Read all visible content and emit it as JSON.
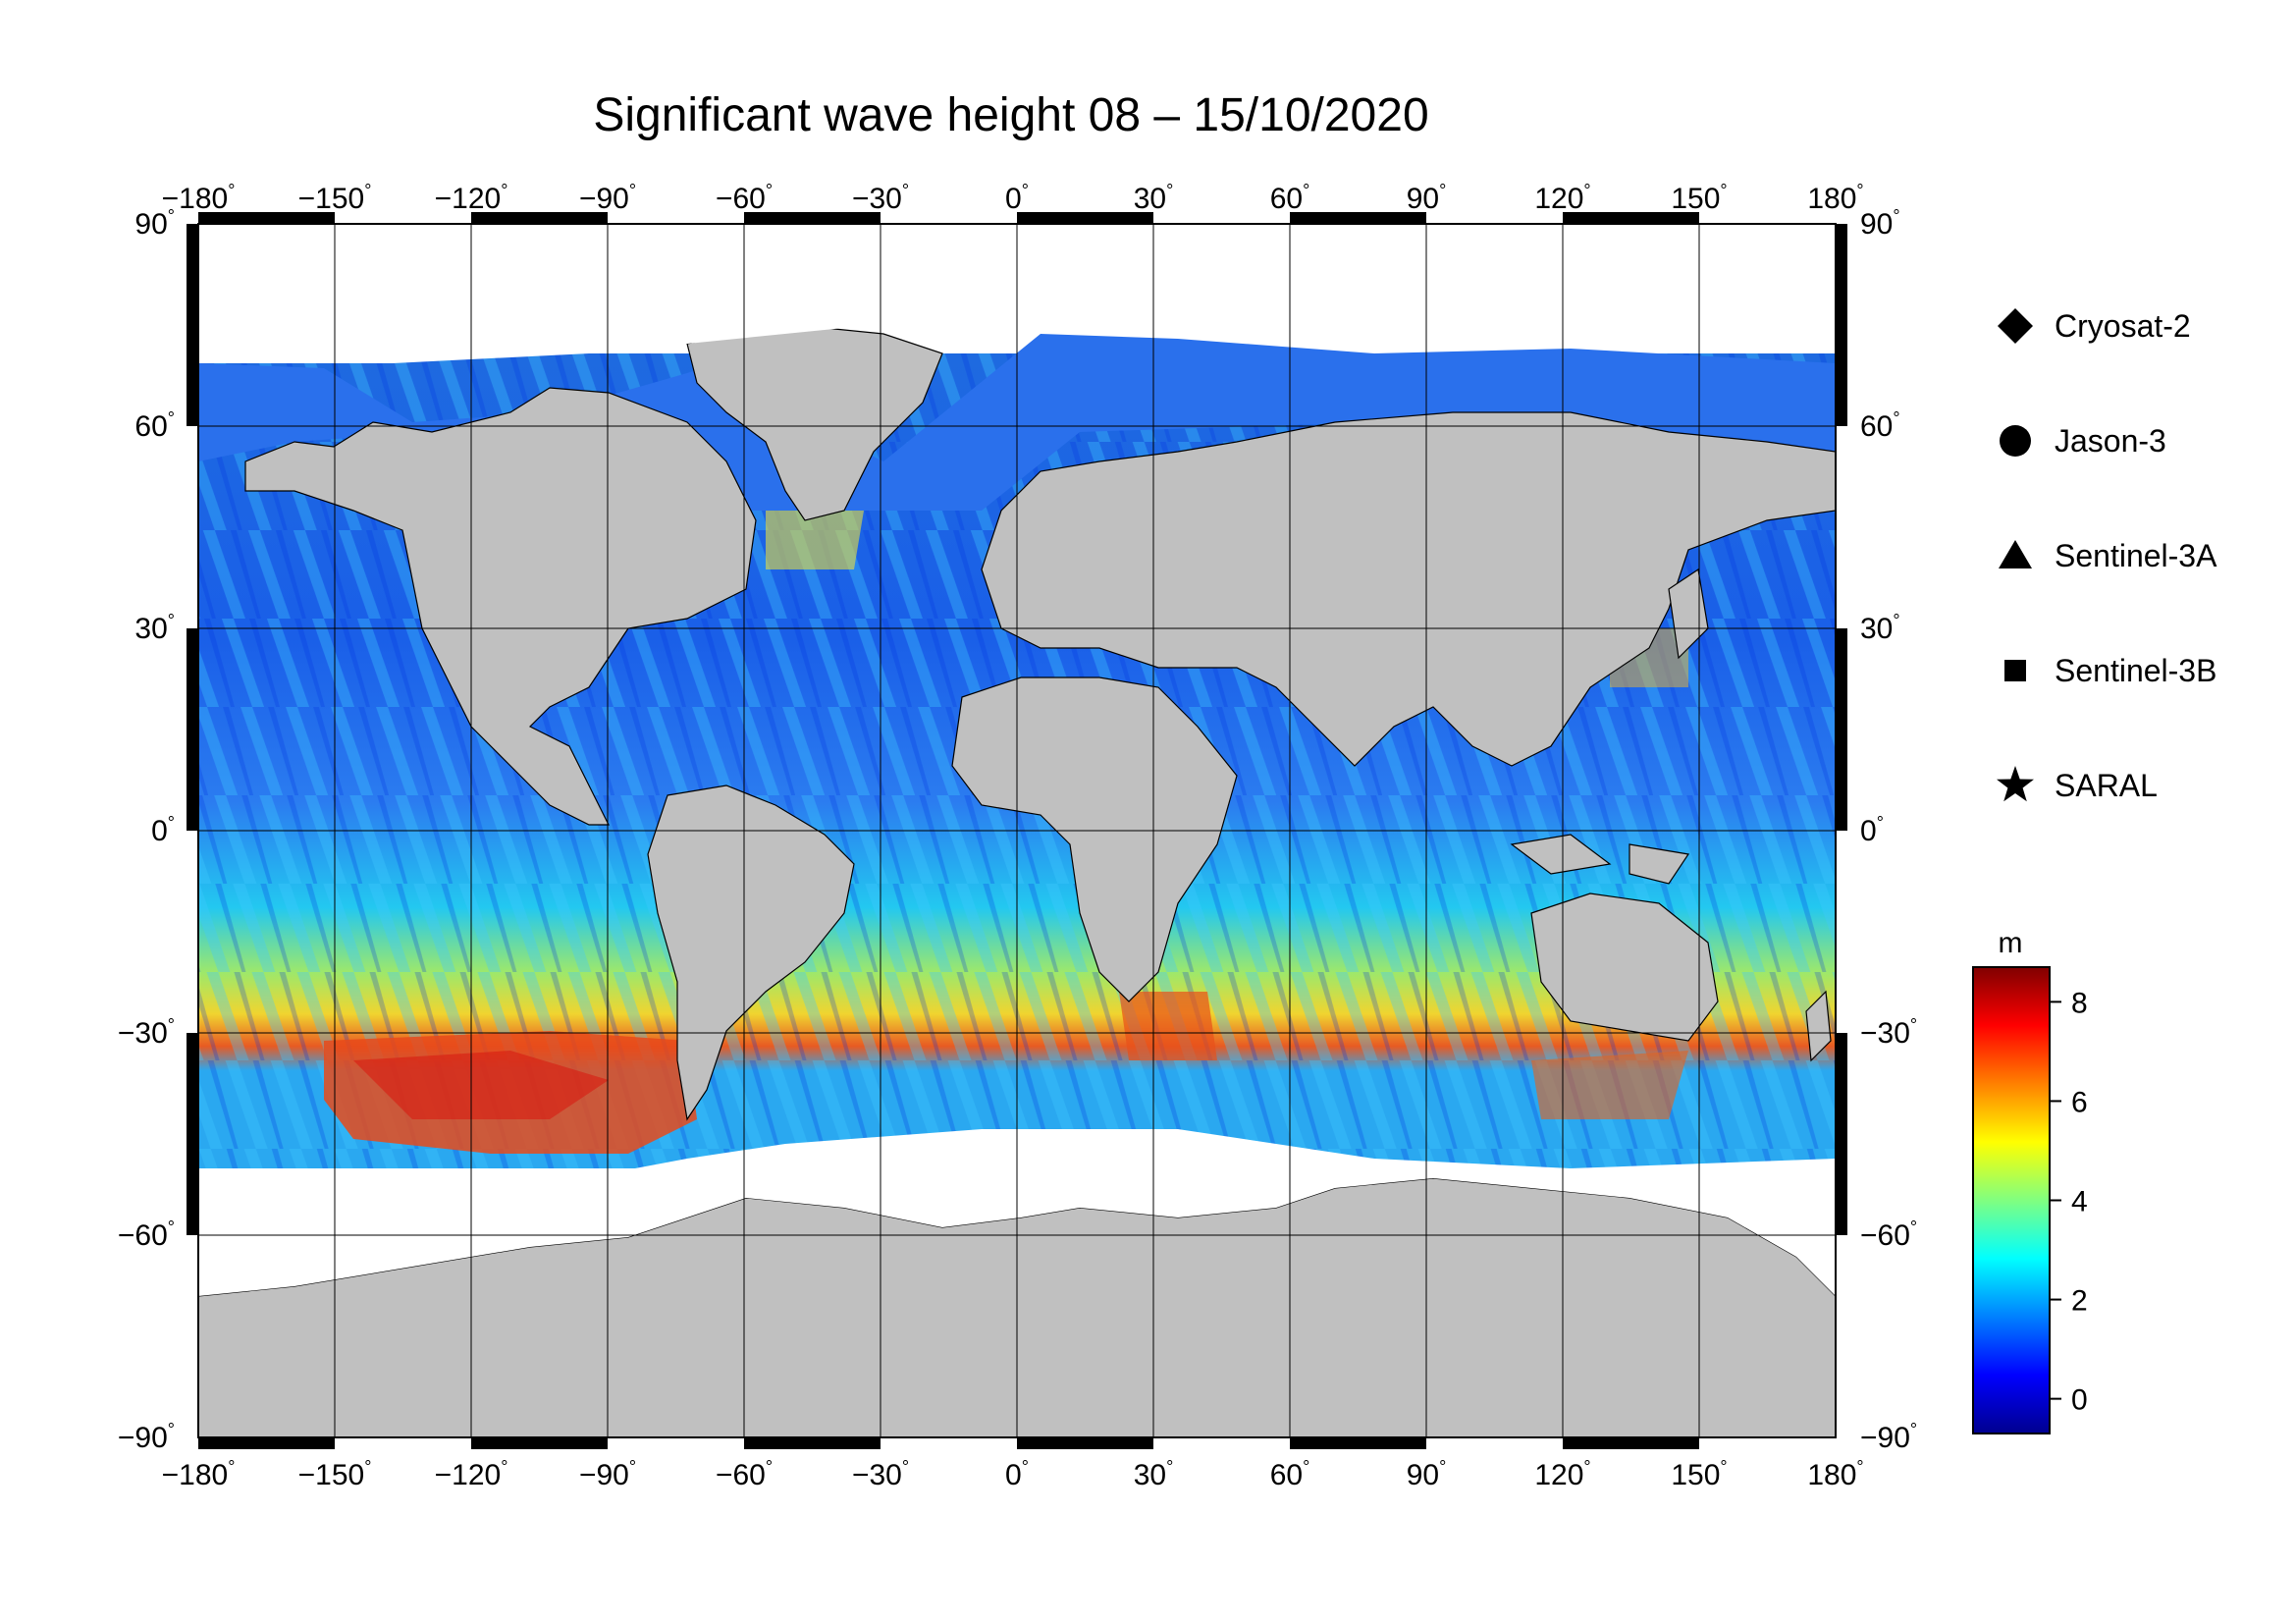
{
  "title": "Significant wave height 08 – 15/10/2020",
  "map": {
    "lon_ticks": [
      -180,
      -150,
      -120,
      -90,
      -60,
      -30,
      0,
      30,
      60,
      90,
      120,
      150,
      180
    ],
    "lat_ticks": [
      90,
      60,
      30,
      0,
      -30,
      -60,
      -90
    ],
    "lon_labels": [
      "−180",
      "−150",
      "−120",
      "−90",
      "−60",
      "−30",
      "0",
      "30",
      "60",
      "90",
      "120",
      "150",
      "180"
    ],
    "lat_labels": [
      "90",
      "60",
      "30",
      "0",
      "−30",
      "−60",
      "−90"
    ],
    "degree_symbol": "°",
    "land_color": "#c0c0c0",
    "ice_color": "#ffffff"
  },
  "legend": {
    "items": [
      {
        "label": "Cryosat-2",
        "marker": "diamond"
      },
      {
        "label": "Jason-3",
        "marker": "circle"
      },
      {
        "label": "Sentinel-3A",
        "marker": "triangle"
      },
      {
        "label": "Sentinel-3B",
        "marker": "square"
      },
      {
        "label": "SARAL",
        "marker": "star"
      }
    ]
  },
  "colorbar": {
    "unit": "m",
    "ticks": [
      "0",
      "2",
      "4",
      "6",
      "8"
    ],
    "tick_values": [
      0,
      2,
      4,
      6,
      8
    ],
    "range": [
      -0.7,
      8.7
    ],
    "colors": [
      "#00008f",
      "#0000ff",
      "#0080ff",
      "#00ffff",
      "#80ff80",
      "#ffff00",
      "#ff8000",
      "#ff0000",
      "#800000"
    ]
  }
}
